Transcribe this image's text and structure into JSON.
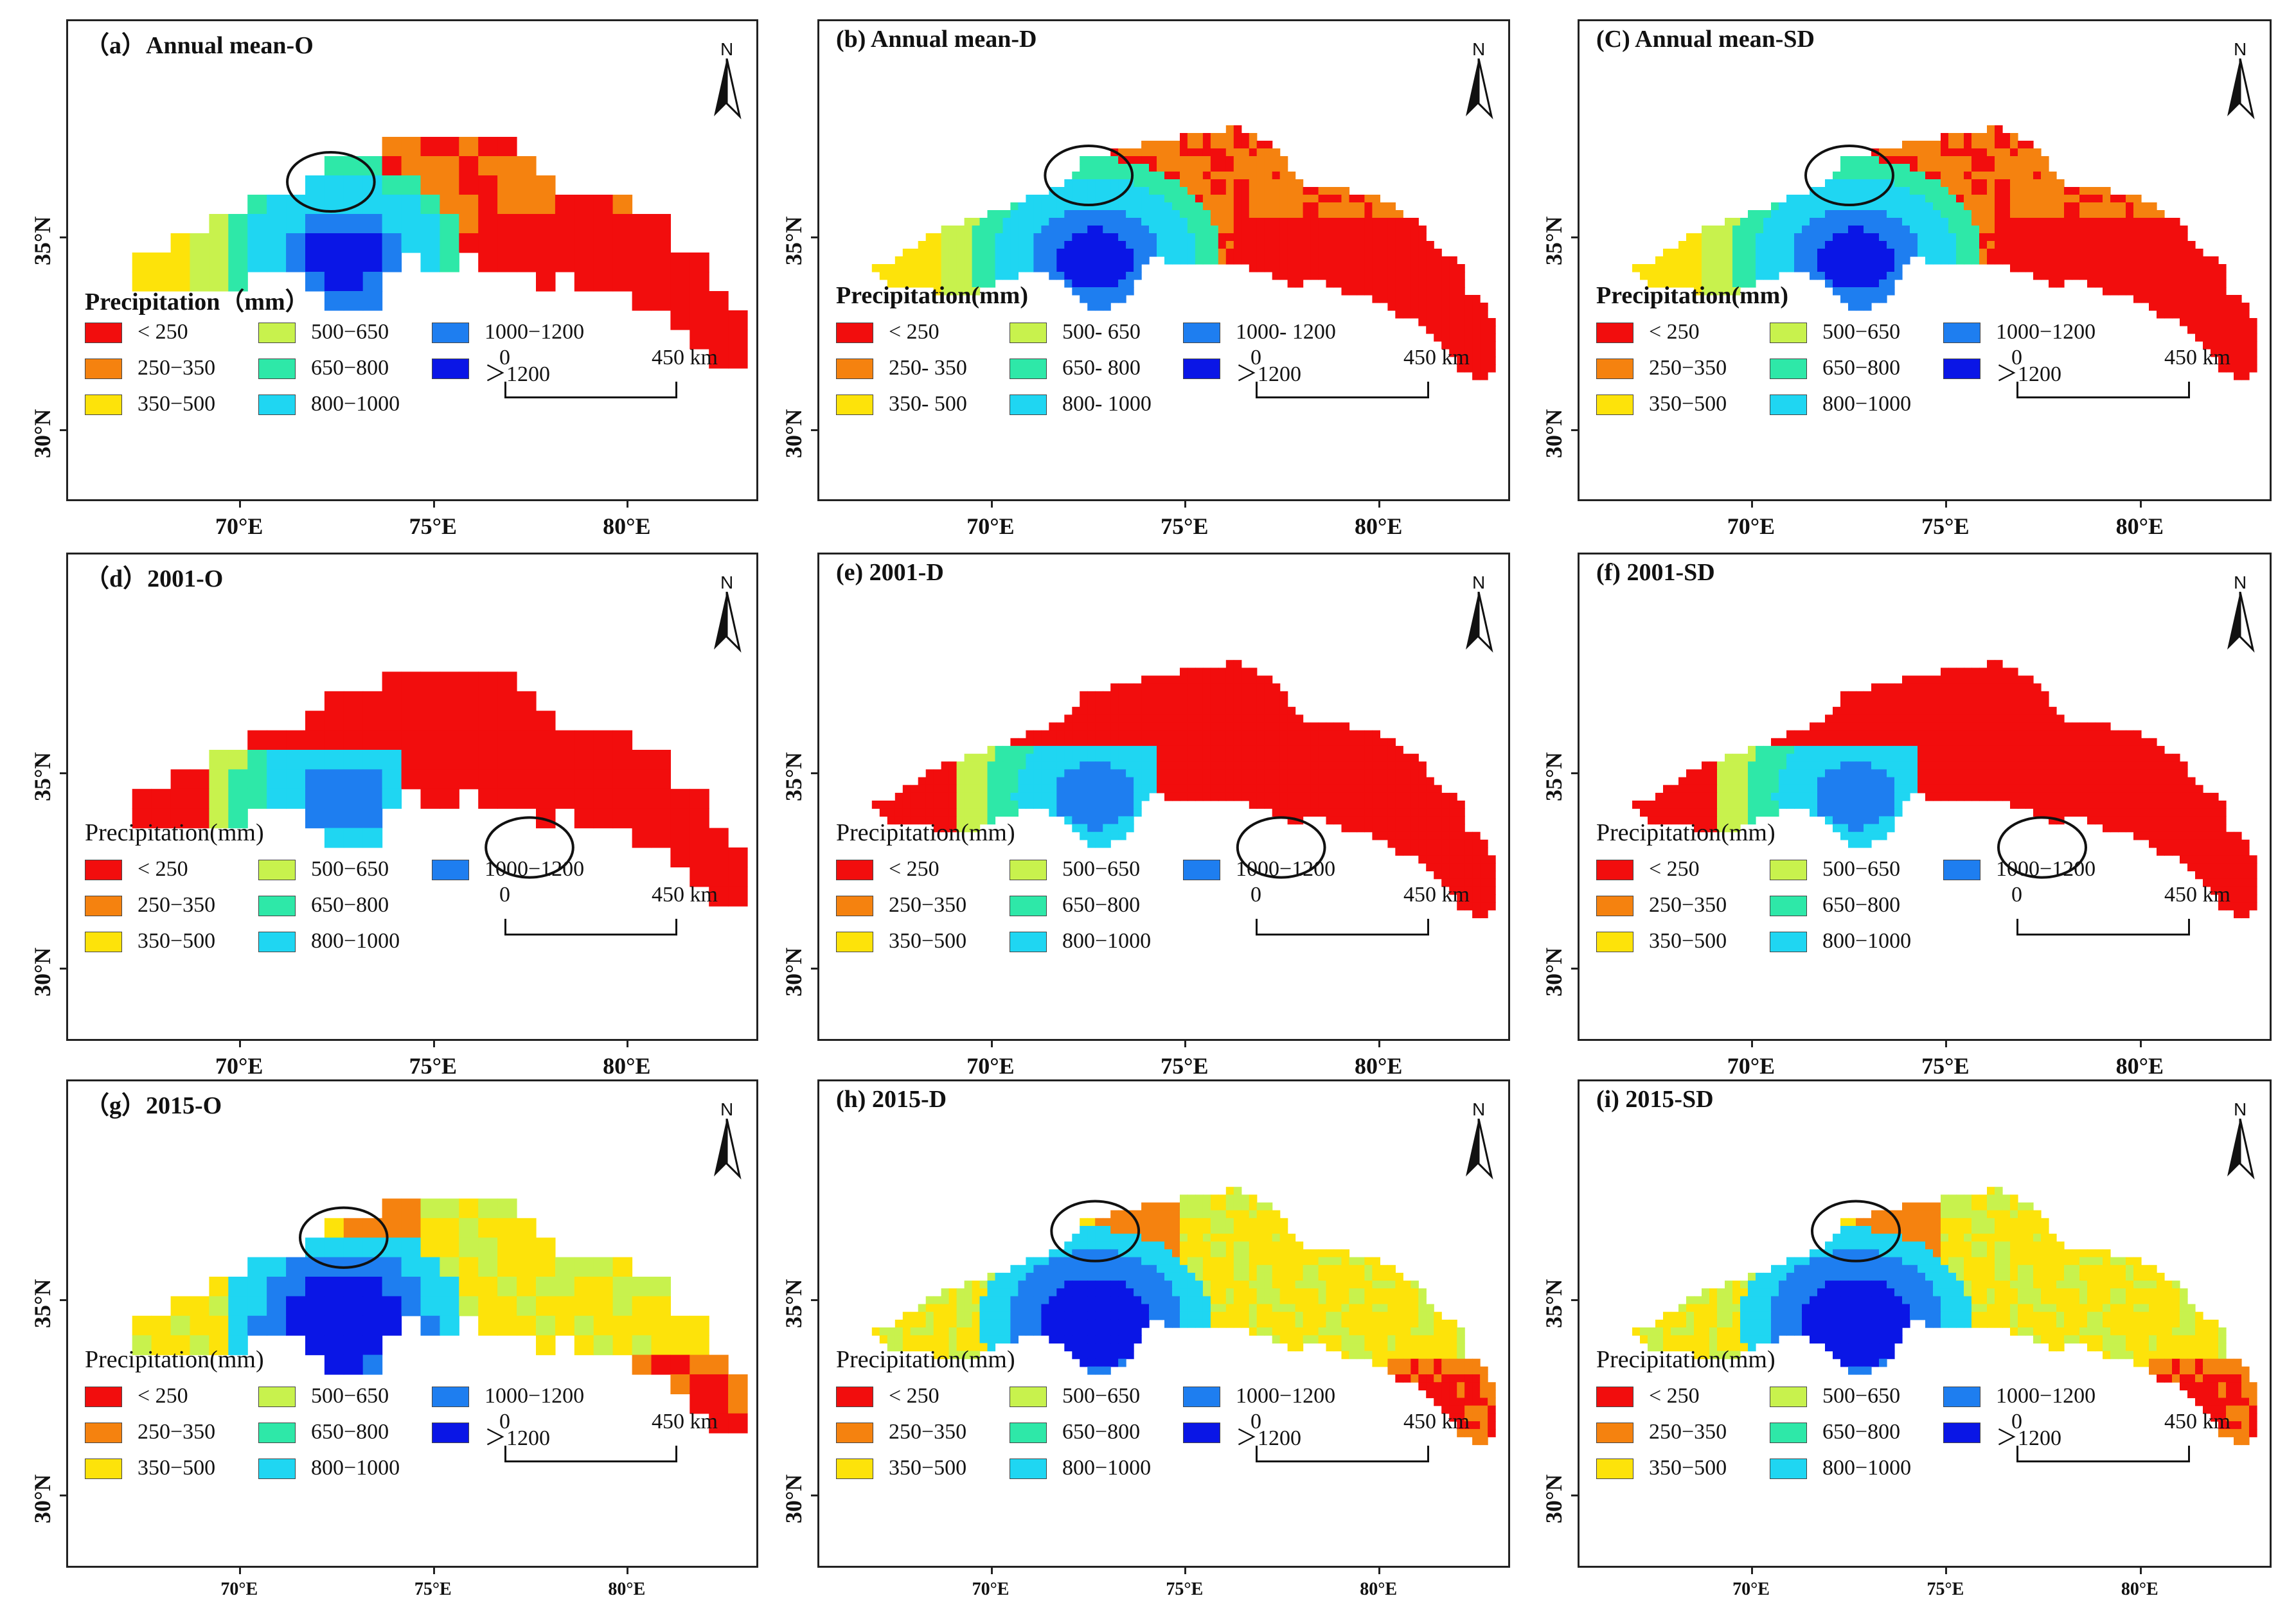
{
  "palette": {
    "c1": "#f20d0d",
    "c2": "#f5820f",
    "c3": "#fde30a",
    "c4": "#c8f24d",
    "c5": "#2ee8a8",
    "c6": "#1fd6f2",
    "c7": "#1e7ef0",
    "c8": "#0a16e6"
  },
  "panels": [
    {
      "id": "a",
      "title": "（a）Annual mean-O",
      "legend_title": "Precipitation（mm）",
      "legend_bold": true,
      "style": "coarse",
      "scheme": "annual",
      "legend": [
        "< 250",
        "250−350",
        "350−500",
        "500−650",
        "650−800",
        "800−1000",
        "1000−1200",
        "＞1200"
      ],
      "scale": {
        "start": "0",
        "end": "450 km"
      },
      "north": "N",
      "y_ticks": [
        "35°N",
        "30°N"
      ],
      "x_ticks": [
        "70°E",
        "75°E",
        "80°E"
      ]
    },
    {
      "id": "b",
      "title": "(b) Annual mean-D",
      "legend_title": "Precipitation(mm)",
      "legend_bold": true,
      "style": "fine",
      "scheme": "annual",
      "legend": [
        "< 250",
        "250- 350",
        "350- 500",
        "500- 650",
        "650- 800",
        "800- 1000",
        "1000- 1200",
        "＞1200"
      ],
      "scale": {
        "start": "0",
        "end": "450 km"
      },
      "north": "N",
      "y_ticks": [
        "35°N",
        "30°N"
      ],
      "x_ticks": [
        "70°E",
        "75°E",
        "80°E"
      ]
    },
    {
      "id": "c",
      "title": "(C) Annual mean-SD",
      "legend_title": "Precipitation(mm)",
      "legend_bold": true,
      "style": "fine",
      "scheme": "annual",
      "legend": [
        "< 250",
        "250−350",
        "350−500",
        "500−650",
        "650−800",
        "800−1000",
        "1000−1200",
        "＞1200"
      ],
      "scale": {
        "start": "0",
        "end": "450 km"
      },
      "north": "N",
      "y_ticks": [
        "35°N",
        "30°N"
      ],
      "x_ticks": [
        "70°E",
        "75°E",
        "80°E"
      ]
    },
    {
      "id": "d",
      "title": "（d）2001-O",
      "legend_title": "Precipitation(mm)",
      "legend_bold": false,
      "style": "coarse",
      "scheme": "y2001",
      "legend": [
        "< 250",
        "250−350",
        "350−500",
        "500−650",
        "650−800",
        "800−1000",
        "1000−1200"
      ],
      "scale": {
        "start": "0",
        "end": "450 km"
      },
      "north": "N",
      "y_ticks": [
        "35°N",
        "30°N"
      ],
      "x_ticks": [
        "70°E",
        "75°E",
        "80°E"
      ]
    },
    {
      "id": "e",
      "title": "(e) 2001-D",
      "legend_title": "Precipitation(mm)",
      "legend_bold": false,
      "style": "fine",
      "scheme": "y2001",
      "legend": [
        "< 250",
        "250−350",
        "350−500",
        "500−650",
        "650−800",
        "800−1000",
        "1000−1200"
      ],
      "scale": {
        "start": "0",
        "end": "450 km"
      },
      "north": "N",
      "y_ticks": [
        "35°N",
        "30°N"
      ],
      "x_ticks": [
        "70°E",
        "75°E",
        "80°E"
      ]
    },
    {
      "id": "f",
      "title": "(f) 2001-SD",
      "legend_title": "Precipitation(mm)",
      "legend_bold": false,
      "style": "fine",
      "scheme": "y2001",
      "legend": [
        "< 250",
        "250−350",
        "350−500",
        "500−650",
        "650−800",
        "800−1000",
        "1000−1200"
      ],
      "scale": {
        "start": "0",
        "end": "450 km"
      },
      "north": "N",
      "y_ticks": [
        "35°N",
        "30°N"
      ],
      "x_ticks": [
        "70°E",
        "75°E",
        "80°E"
      ]
    },
    {
      "id": "g",
      "title": "（g）2015-O",
      "legend_title": "Precipitation(mm)",
      "legend_bold": false,
      "style": "coarse",
      "scheme": "y2015",
      "legend": [
        "< 250",
        "250−350",
        "350−500",
        "500−650",
        "650−800",
        "800−1000",
        "1000−1200",
        "＞1200"
      ],
      "scale": {
        "start": "0",
        "end": "450 km"
      },
      "north": "N",
      "y_ticks": [
        "35°N",
        "30°N"
      ],
      "x_ticks": [
        "70°E",
        "75°E",
        "80°E"
      ]
    },
    {
      "id": "h",
      "title": "(h) 2015-D",
      "legend_title": "Precipitation(mm)",
      "legend_bold": false,
      "style": "fine",
      "scheme": "y2015",
      "legend": [
        "< 250",
        "250−350",
        "350−500",
        "500−650",
        "650−800",
        "800−1000",
        "1000−1200",
        "＞1200"
      ],
      "scale": {
        "start": "0",
        "end": "450 km"
      },
      "north": "N",
      "y_ticks": [
        "35°N",
        "30°N"
      ],
      "x_ticks": [
        "70°E",
        "75°E",
        "80°E"
      ]
    },
    {
      "id": "i",
      "title": "(i) 2015-SD",
      "legend_title": "Precipitation(mm)",
      "legend_bold": false,
      "style": "fine",
      "scheme": "y2015",
      "legend": [
        "< 250",
        "250−350",
        "350−500",
        "500−650",
        "650−800",
        "800−1000",
        "1000−1200",
        "＞1200"
      ],
      "scale": {
        "start": "0",
        "end": "450 km"
      },
      "north": "N",
      "y_ticks": [
        "35°N",
        "30°N"
      ],
      "x_ticks": [
        "70°E",
        "75°E",
        "80°E"
      ]
    }
  ]
}
